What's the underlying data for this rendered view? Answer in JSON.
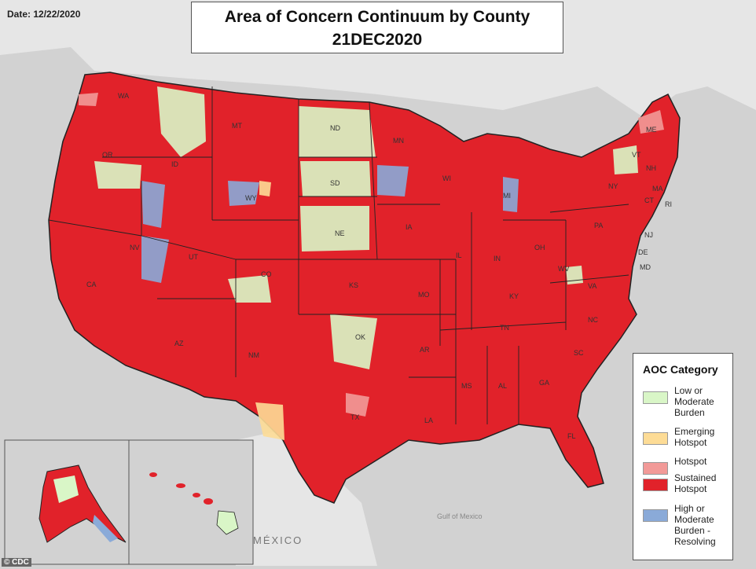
{
  "date_label": "Date: 12/22/2020",
  "title": {
    "line1": "Area of Concern Continuum by County",
    "line2": "21DEC2020"
  },
  "colors": {
    "low_moderate": "#d9f6c7",
    "emerging": "#fddc96",
    "hotspot": "#f29a98",
    "sustained": "#e1222a",
    "resolving": "#8aaad8",
    "water": "#d2d2d2",
    "land": "#e9e9e9",
    "border": "#222222"
  },
  "legend": {
    "title": "AOC Category",
    "items": [
      {
        "label": "Low or Moderate Burden",
        "color": "#d9f6c7"
      },
      {
        "label": "Emerging Hotspot",
        "color": "#fddc96"
      },
      {
        "label": "Hotspot",
        "color": "#f29a98"
      },
      {
        "label": "Sustained Hotspot",
        "color": "#e1222a"
      },
      {
        "label": "High or Moderate Burden - Resolving",
        "color": "#8aaad8"
      }
    ]
  },
  "states": [
    "WA",
    "OR",
    "CA",
    "ID",
    "NV",
    "MT",
    "WY",
    "UT",
    "AZ",
    "CO",
    "NM",
    "ND",
    "SD",
    "NE",
    "KS",
    "OK",
    "TX",
    "MN",
    "IA",
    "MO",
    "AR",
    "LA",
    "WI",
    "IL",
    "MI",
    "IN",
    "KY",
    "TN",
    "MS",
    "AL",
    "GA",
    "FL",
    "OH",
    "WV",
    "VA",
    "NC",
    "SC",
    "PA",
    "NY",
    "ME",
    "VT",
    "NH",
    "MA",
    "CT",
    "RI",
    "NJ",
    "DE",
    "MD",
    "AK",
    "HI"
  ],
  "geo_labels": {
    "mexico": "MÉXICO",
    "gulf": "Gulf of Mexico"
  },
  "footer": "© CDC"
}
